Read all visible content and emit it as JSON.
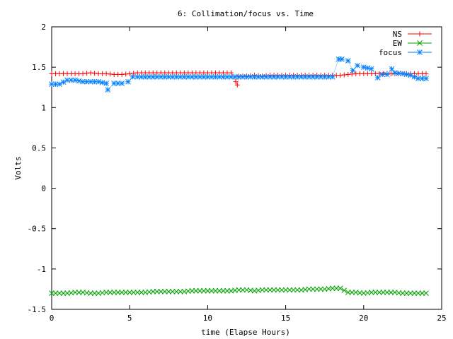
{
  "chart_data": {
    "type": "scatter",
    "title": "6: Collimation/focus vs. Time",
    "xlabel": "time (Elapse Hours)",
    "ylabel": "Volts",
    "xlim": [
      0,
      25
    ],
    "ylim": [
      -1.5,
      2
    ],
    "xticks": [
      "0",
      "5",
      "10",
      "15",
      "20",
      "25"
    ],
    "yticks": [
      "2",
      "1.5",
      "1",
      "0.5",
      "0",
      "-0.5",
      "-1",
      "-1.5"
    ],
    "xtick_values": [
      0,
      5,
      10,
      15,
      20,
      25
    ],
    "ytick_values": [
      2,
      1.5,
      1,
      0.5,
      0,
      -0.5,
      -1,
      -1.5
    ],
    "grid": false,
    "legend_position": "top-right",
    "series": [
      {
        "name": "NS",
        "color": "#ff0000",
        "marker": "plus",
        "x": [
          0,
          0.5,
          1,
          1.5,
          2,
          2.5,
          3,
          3.5,
          4,
          4.5,
          5,
          5.5,
          6,
          6.5,
          7,
          7.5,
          8,
          8.5,
          9,
          9.5,
          10,
          10.5,
          11,
          11.5,
          11.8,
          11.9,
          12,
          12.5,
          13,
          13.5,
          14,
          14.5,
          15,
          15.5,
          16,
          16.5,
          17,
          17.5,
          18,
          18.5,
          19,
          19.5,
          20,
          20.5,
          21,
          21.5,
          22,
          22.5,
          23,
          23.5,
          24
        ],
        "y": [
          1.42,
          1.42,
          1.42,
          1.42,
          1.42,
          1.43,
          1.42,
          1.42,
          1.41,
          1.41,
          1.42,
          1.43,
          1.43,
          1.43,
          1.43,
          1.43,
          1.43,
          1.43,
          1.43,
          1.43,
          1.43,
          1.43,
          1.43,
          1.43,
          1.32,
          1.28,
          1.39,
          1.39,
          1.4,
          1.39,
          1.4,
          1.4,
          1.4,
          1.4,
          1.4,
          1.4,
          1.4,
          1.4,
          1.4,
          1.4,
          1.41,
          1.42,
          1.42,
          1.42,
          1.42,
          1.42,
          1.42,
          1.42,
          1.42,
          1.42,
          1.42
        ]
      },
      {
        "name": "EW",
        "color": "#00a000",
        "marker": "cross",
        "x": [
          0,
          0.5,
          1,
          1.5,
          2,
          2.5,
          3,
          3.5,
          4,
          4.5,
          5,
          5.5,
          6,
          6.5,
          7,
          7.5,
          8,
          8.5,
          9,
          9.5,
          10,
          10.5,
          11,
          11.5,
          12,
          12.5,
          13,
          13.5,
          14,
          14.5,
          15,
          15.5,
          16,
          16.5,
          17,
          17.5,
          18,
          18.5,
          19,
          19.5,
          20,
          20.5,
          21,
          21.5,
          22,
          22.5,
          23,
          23.5,
          24
        ],
        "y": [
          -1.3,
          -1.3,
          -1.3,
          -1.29,
          -1.29,
          -1.3,
          -1.3,
          -1.29,
          -1.29,
          -1.29,
          -1.29,
          -1.29,
          -1.29,
          -1.28,
          -1.28,
          -1.28,
          -1.28,
          -1.28,
          -1.27,
          -1.27,
          -1.27,
          -1.27,
          -1.27,
          -1.27,
          -1.26,
          -1.26,
          -1.27,
          -1.26,
          -1.26,
          -1.26,
          -1.26,
          -1.26,
          -1.26,
          -1.25,
          -1.25,
          -1.25,
          -1.24,
          -1.24,
          -1.29,
          -1.29,
          -1.3,
          -1.29,
          -1.29,
          -1.29,
          -1.29,
          -1.3,
          -1.3,
          -1.3,
          -1.3
        ]
      },
      {
        "name": "focus",
        "color": "#0080ff",
        "marker": "star",
        "x": [
          0,
          0.5,
          1,
          1.5,
          2,
          2.5,
          3,
          3.5,
          3.6,
          4,
          4.5,
          4.9,
          5.2,
          5.5,
          6,
          6.5,
          7,
          7.5,
          8,
          8.5,
          9,
          9.5,
          10,
          10.5,
          11,
          11.5,
          12,
          12.5,
          13,
          13.5,
          14,
          14.5,
          15,
          15.5,
          16,
          16.5,
          17,
          17.5,
          18,
          18.4,
          18.6,
          19,
          19.3,
          19.6,
          20,
          20.5,
          20.9,
          21.2,
          21.5,
          21.8,
          22,
          22.5,
          23,
          23.5,
          24
        ],
        "y": [
          1.29,
          1.29,
          1.34,
          1.34,
          1.32,
          1.32,
          1.32,
          1.3,
          1.22,
          1.3,
          1.3,
          1.32,
          1.38,
          1.38,
          1.38,
          1.38,
          1.38,
          1.38,
          1.38,
          1.38,
          1.38,
          1.38,
          1.38,
          1.38,
          1.38,
          1.38,
          1.38,
          1.38,
          1.38,
          1.38,
          1.38,
          1.38,
          1.38,
          1.38,
          1.38,
          1.38,
          1.38,
          1.38,
          1.38,
          1.6,
          1.6,
          1.58,
          1.46,
          1.52,
          1.5,
          1.48,
          1.37,
          1.41,
          1.41,
          1.48,
          1.43,
          1.42,
          1.4,
          1.36,
          1.36
        ]
      }
    ]
  }
}
